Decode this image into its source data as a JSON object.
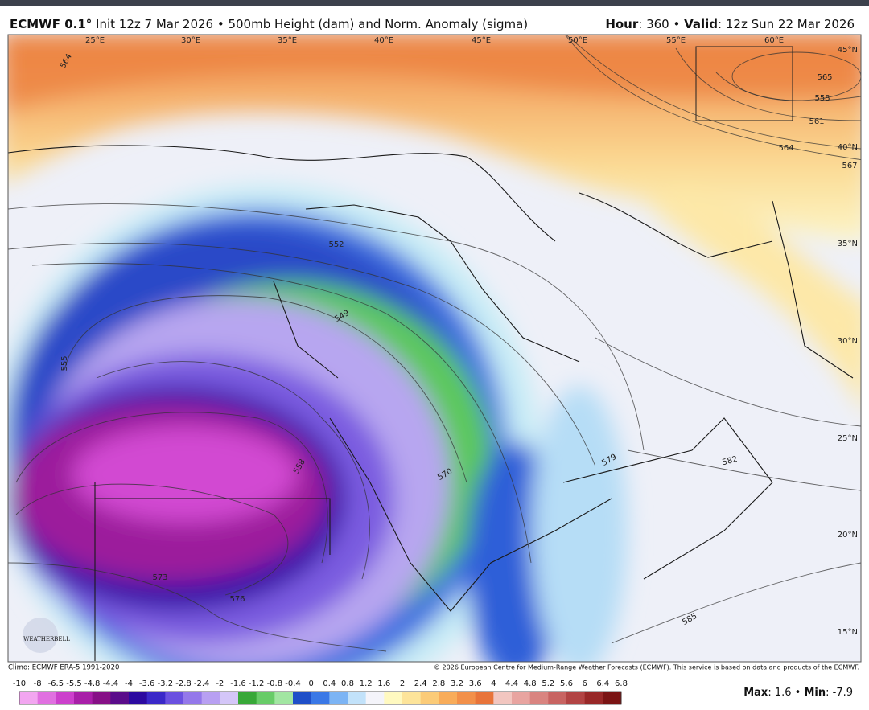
{
  "header": {
    "left": [
      {
        "text": "ECMWF 0.1°",
        "bold": true
      },
      {
        "text": " Init 12z 7 Mar 2026 • 500mb Height (dam) and Norm. Anomaly (sigma)",
        "bold": false
      }
    ],
    "right": [
      {
        "text": "Hour",
        "bold": true
      },
      {
        "text": ": 360 • ",
        "bold": false
      },
      {
        "text": "Valid",
        "bold": true
      },
      {
        "text": ": 12z Sun 22 Mar 2026",
        "bold": false
      }
    ]
  },
  "map": {
    "longitude_labels": [
      "25°E",
      "30°E",
      "35°E",
      "40°E",
      "45°E",
      "50°E",
      "55°E",
      "60°E"
    ],
    "latitude_labels": [
      "45°N",
      "40°N",
      "35°N",
      "30°N",
      "25°N",
      "20°N",
      "15°N"
    ],
    "contour_labels": [
      "564",
      "565",
      "558",
      "561",
      "564",
      "567",
      "552",
      "549",
      "555",
      "558",
      "570",
      "573",
      "576",
      "579",
      "582",
      "585"
    ],
    "logo": "WEATHERBELL"
  },
  "footer": {
    "climo": "Climo: ECMWF ERA-5 1991-2020",
    "copyright": "© 2026 European Centre for Medium-Range Weather Forecasts (ECMWF). This service is based on data and products of the ECMWF."
  },
  "colorbar": {
    "labels": [
      "-10",
      "-8",
      "-6.5",
      "-5.5",
      "-4.8",
      "-4.4",
      "-4",
      "-3.6",
      "-3.2",
      "-2.8",
      "-2.4",
      "-2",
      "-1.6",
      "-1.2",
      "-0.8",
      "-0.4",
      "0",
      "0.4",
      "0.8",
      "1.2",
      "1.6",
      "2",
      "2.4",
      "2.8",
      "3.2",
      "3.6",
      "4",
      "4.4",
      "4.8",
      "5.2",
      "5.6",
      "6",
      "6.4",
      "6.8"
    ],
    "colors": [
      "#f2a6f0",
      "#e070e0",
      "#cc40cc",
      "#a81fa8",
      "#861086",
      "#5a0c8a",
      "#2c0aa0",
      "#3a28c8",
      "#6a50e0",
      "#9478ea",
      "#b8a0f2",
      "#d4c6f8",
      "#38a838",
      "#68cc68",
      "#a2e6a2",
      "#1f4fc8",
      "#3a78e6",
      "#7cb4f4",
      "#c2e2fa",
      "#f4f4fa",
      "#fff9c0",
      "#fde49a",
      "#fbcb78",
      "#f8ac5a",
      "#f2904a",
      "#e8743a",
      "#f2c6c0",
      "#e8a4a0",
      "#d98480",
      "#c86462",
      "#b24444",
      "#982828",
      "#7a1414"
    ]
  },
  "stats": [
    {
      "text": "Max",
      "bold": true
    },
    {
      "text": ": 1.6 • ",
      "bold": false
    },
    {
      "text": "Min",
      "bold": true
    },
    {
      "text": ": -7.9",
      "bold": false
    }
  ]
}
